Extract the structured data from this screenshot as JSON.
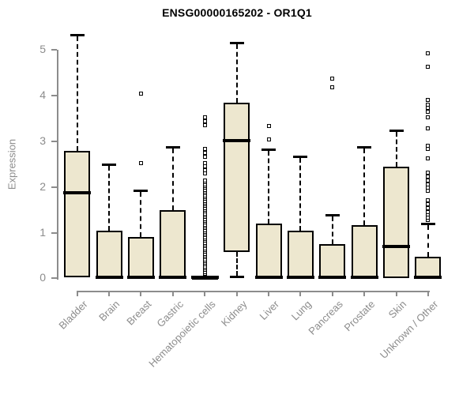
{
  "chart_data": {
    "type": "boxplot",
    "title": "ENSG00000165202 - OR1Q1",
    "ylabel": "Expression",
    "xlabel": "",
    "ylim": [
      0,
      5.45
    ],
    "yticks": [
      0,
      1,
      2,
      3,
      4,
      5
    ],
    "grid": false,
    "legend": "none",
    "box_fill": "#EDE7CF",
    "box_border": "#000000",
    "axis_color": "#8C8C8C",
    "label_color": "#8C8C8C",
    "title_color": "#000000",
    "categories": [
      "Bladder",
      "Brain",
      "Breast",
      "Gastric",
      "Hematopoietic cells",
      "Kidney",
      "Liver",
      "Lung",
      "Pancreas",
      "Prostate",
      "Skin",
      "Unknown / Other"
    ],
    "series": [
      {
        "name": "Bladder",
        "q1": 0.02,
        "median": 1.88,
        "q3": 2.79,
        "whisker_low": null,
        "whisker_high": 5.35,
        "outliers": []
      },
      {
        "name": "Brain",
        "q1": 0.0,
        "median": 0.02,
        "q3": 1.04,
        "whisker_low": null,
        "whisker_high": 2.51,
        "outliers": []
      },
      {
        "name": "Breast",
        "q1": 0.0,
        "median": 0.02,
        "q3": 0.9,
        "whisker_low": null,
        "whisker_high": 1.95,
        "outliers": [
          2.53,
          4.04
        ]
      },
      {
        "name": "Gastric",
        "q1": 0.0,
        "median": 0.02,
        "q3": 1.5,
        "whisker_low": null,
        "whisker_high": 2.89,
        "outliers": []
      },
      {
        "name": "Hematopoietic cells",
        "q1": 0.0,
        "median": 0.02,
        "q3": 0.04,
        "whisker_low": null,
        "whisker_high": null,
        "outliers": [
          0.1,
          0.14,
          0.18,
          0.22,
          0.26,
          0.3,
          0.34,
          0.38,
          0.42,
          0.46,
          0.5,
          0.54,
          0.58,
          0.62,
          0.66,
          0.7,
          0.74,
          0.78,
          0.82,
          0.86,
          0.9,
          0.94,
          0.98,
          1.02,
          1.06,
          1.1,
          1.14,
          1.18,
          1.22,
          1.26,
          1.3,
          1.34,
          1.38,
          1.42,
          1.46,
          1.5,
          1.54,
          1.58,
          1.62,
          1.66,
          1.7,
          1.74,
          1.78,
          1.82,
          1.86,
          1.9,
          1.94,
          1.98,
          2.02,
          2.06,
          2.1,
          2.14,
          2.29,
          2.36,
          2.45,
          2.52,
          2.66,
          2.75,
          2.84,
          3.35,
          3.44,
          3.53
        ]
      },
      {
        "name": "Kidney",
        "q1": 0.58,
        "median": 3.02,
        "q3": 3.85,
        "whisker_low": 0.02,
        "whisker_high": 5.18,
        "outliers": []
      },
      {
        "name": "Liver",
        "q1": 0.0,
        "median": 0.02,
        "q3": 1.2,
        "whisker_low": null,
        "whisker_high": 2.84,
        "outliers": [
          3.05,
          3.34
        ]
      },
      {
        "name": "Lung",
        "q1": 0.0,
        "median": 0.02,
        "q3": 1.05,
        "whisker_low": null,
        "whisker_high": 2.69,
        "outliers": []
      },
      {
        "name": "Pancreas",
        "q1": 0.0,
        "median": 0.02,
        "q3": 0.75,
        "whisker_low": null,
        "whisker_high": 1.41,
        "outliers": [
          4.19,
          4.37
        ]
      },
      {
        "name": "Prostate",
        "q1": 0.0,
        "median": 0.02,
        "q3": 1.17,
        "whisker_low": null,
        "whisker_high": 2.89,
        "outliers": []
      },
      {
        "name": "Skin",
        "q1": 0.01,
        "median": 0.7,
        "q3": 2.45,
        "whisker_low": null,
        "whisker_high": 3.26,
        "outliers": []
      },
      {
        "name": "Unknown / Other",
        "q1": 0.0,
        "median": 0.02,
        "q3": 0.48,
        "whisker_low": null,
        "whisker_high": 1.22,
        "outliers": [
          1.28,
          1.33,
          1.39,
          1.45,
          1.54,
          1.62,
          1.71,
          1.91,
          1.98,
          2.06,
          2.14,
          2.22,
          2.32,
          2.62,
          2.84,
          2.9,
          3.29,
          3.53,
          3.65,
          3.73,
          3.81,
          3.9,
          4.64,
          4.92
        ]
      }
    ]
  }
}
